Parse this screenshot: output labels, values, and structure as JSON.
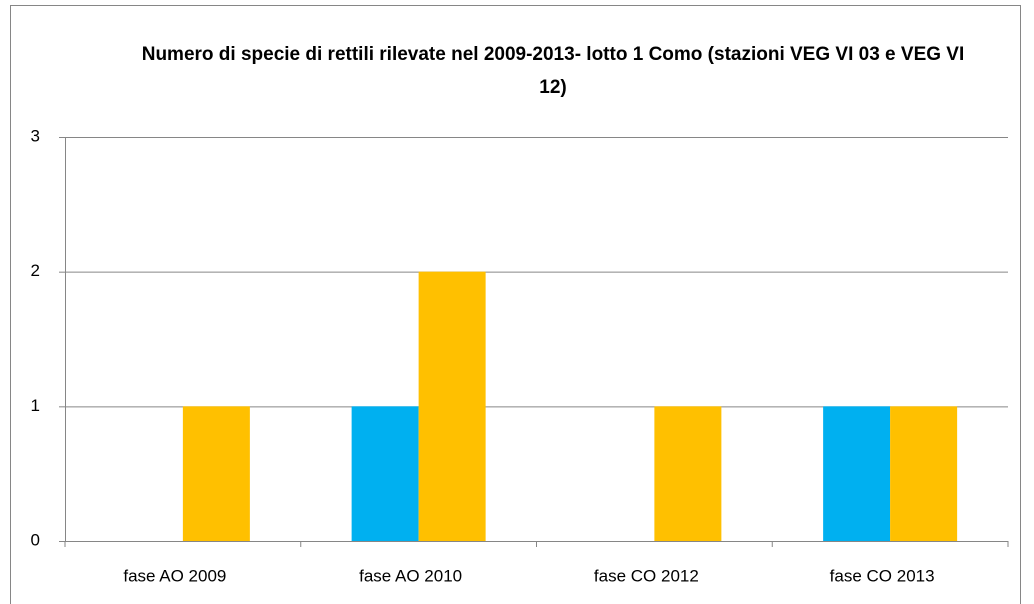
{
  "chart_data": {
    "type": "bar",
    "title": "Numero di specie di rettili rilevate nel 2009-2013- lotto 1 Como (stazioni VEG VI 03 e VEG VI 12)",
    "categories": [
      "fase AO 2009",
      "fase AO 2010",
      "fase CO 2012",
      "fase CO 2013"
    ],
    "series": [
      {
        "color": "#00b0f0",
        "values": [
          0,
          1,
          0,
          1
        ]
      },
      {
        "color": "#ffc000",
        "values": [
          1,
          2,
          1,
          1
        ]
      }
    ],
    "ylim": [
      0,
      3
    ],
    "yticks": [
      0,
      1,
      2,
      3
    ],
    "grid": true
  }
}
